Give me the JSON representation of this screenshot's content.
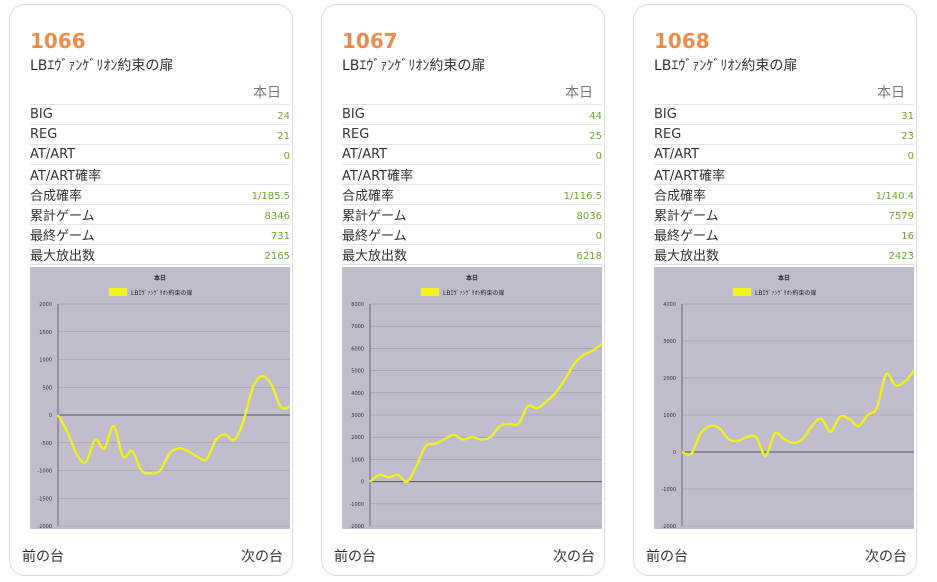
{
  "colors": {
    "accent": "#ee8a4a",
    "value": "#6aa62e",
    "line": "#f2f21e",
    "plot_bg": "#c0bccc"
  },
  "cards": [
    {
      "number": "1066",
      "machine": "LBｴｳﾞｧﾝｹﾞﾘｵﾝ約束の扉",
      "day_label": "本日",
      "stats": [
        {
          "label": "BIG",
          "value": "24"
        },
        {
          "label": "REG",
          "value": "21"
        },
        {
          "label": "AT/ART",
          "value": "0"
        },
        {
          "label": "AT/ART確率",
          "value": ""
        },
        {
          "label": "合成確率",
          "value": "1/185.5"
        },
        {
          "label": "累計ゲーム",
          "value": "8346"
        },
        {
          "label": "最終ゲーム",
          "value": "731"
        },
        {
          "label": "最大放出数",
          "value": "2165"
        }
      ],
      "prev_label": "前の台",
      "next_label": "次の台"
    },
    {
      "number": "1067",
      "machine": "LBｴｳﾞｧﾝｹﾞﾘｵﾝ約束の扉",
      "day_label": "本日",
      "stats": [
        {
          "label": "BIG",
          "value": "44"
        },
        {
          "label": "REG",
          "value": "25"
        },
        {
          "label": "AT/ART",
          "value": "0"
        },
        {
          "label": "AT/ART確率",
          "value": ""
        },
        {
          "label": "合成確率",
          "value": "1/116.5"
        },
        {
          "label": "累計ゲーム",
          "value": "8036"
        },
        {
          "label": "最終ゲーム",
          "value": "0"
        },
        {
          "label": "最大放出数",
          "value": "6218"
        }
      ],
      "prev_label": "前の台",
      "next_label": "次の台"
    },
    {
      "number": "1068",
      "machine": "LBｴｳﾞｧﾝｹﾞﾘｵﾝ約束の扉",
      "day_label": "本日",
      "stats": [
        {
          "label": "BIG",
          "value": "31"
        },
        {
          "label": "REG",
          "value": "23"
        },
        {
          "label": "AT/ART",
          "value": "0"
        },
        {
          "label": "AT/ART確率",
          "value": ""
        },
        {
          "label": "合成確率",
          "value": "1/140.4"
        },
        {
          "label": "累計ゲーム",
          "value": "7579"
        },
        {
          "label": "最終ゲーム",
          "value": "16"
        },
        {
          "label": "最大放出数",
          "value": "2423"
        }
      ],
      "prev_label": "前の台",
      "next_label": "次の台"
    }
  ],
  "chart_data": [
    {
      "type": "line",
      "title": "本日",
      "legend": "top-center",
      "series": [
        {
          "name": "LBｴｳﾞｧﾝｹﾞﾘｵﾝ約束の扉",
          "x": [
            0,
            4,
            8,
            12,
            16,
            20,
            24,
            28,
            32,
            36,
            40,
            44,
            48,
            52,
            56,
            60,
            64,
            68,
            72,
            76,
            80,
            84,
            88,
            92,
            96,
            100
          ],
          "values": [
            0,
            -300,
            -700,
            -850,
            -450,
            -600,
            -200,
            -750,
            -650,
            -1000,
            -1050,
            -1000,
            -700,
            -600,
            -650,
            -750,
            -800,
            -450,
            -350,
            -450,
            -100,
            500,
            700,
            550,
            150,
            150
          ]
        }
      ],
      "ylim": [
        -2000,
        2000
      ],
      "yticks": [
        2000,
        1500,
        1000,
        500,
        0,
        -500,
        -1000,
        -1500,
        -2000
      ],
      "ytick_labels": [
        "2000",
        "1500",
        "1000",
        "500",
        "0",
        "-500",
        "-1000",
        "-1500",
        "-2000"
      ],
      "grid": true
    },
    {
      "type": "line",
      "title": "本日",
      "legend": "top-center",
      "series": [
        {
          "name": "LBｴｳﾞｧﾝｹﾞﾘｵﾝ約束の扉",
          "x": [
            0,
            4,
            8,
            12,
            16,
            20,
            24,
            28,
            32,
            36,
            40,
            44,
            48,
            52,
            56,
            60,
            64,
            68,
            72,
            76,
            80,
            84,
            88,
            92,
            96,
            100
          ],
          "values": [
            0,
            300,
            200,
            300,
            0,
            700,
            1600,
            1700,
            1900,
            2100,
            1900,
            2000,
            1900,
            2000,
            2500,
            2600,
            2600,
            3400,
            3300,
            3600,
            4000,
            4600,
            5300,
            5700,
            5900,
            6200
          ]
        }
      ],
      "ylim": [
        -2000,
        8000
      ],
      "yticks": [
        8000,
        7000,
        6000,
        5000,
        4000,
        3000,
        2000,
        1000,
        0,
        -1000,
        -2000
      ],
      "ytick_labels": [
        "8000",
        "7000",
        "6000",
        "5000",
        "4000",
        "3000",
        "2000",
        "1000",
        "0",
        "-1000",
        "-2000"
      ],
      "grid": true
    },
    {
      "type": "line",
      "title": "本日",
      "legend": "top-center",
      "series": [
        {
          "name": "LBｴｳﾞｧﾝｹﾞﾘｵﾝ約束の扉",
          "x": [
            0,
            4,
            8,
            12,
            16,
            20,
            24,
            28,
            32,
            36,
            40,
            44,
            48,
            52,
            56,
            60,
            64,
            68,
            72,
            76,
            80,
            84,
            88,
            92,
            96,
            100
          ],
          "values": [
            0,
            -50,
            500,
            700,
            650,
            350,
            300,
            400,
            400,
            -100,
            500,
            350,
            250,
            350,
            700,
            900,
            550,
            950,
            900,
            700,
            1000,
            1200,
            2100,
            1800,
            1900,
            2200
          ]
        }
      ],
      "ylim": [
        -2000,
        4000
      ],
      "yticks": [
        4000,
        3000,
        2000,
        1000,
        0,
        -1000,
        -2000
      ],
      "ytick_labels": [
        "4000",
        "3000",
        "2000",
        "1000",
        "0",
        "-1000",
        "-2000"
      ],
      "grid": true
    }
  ]
}
